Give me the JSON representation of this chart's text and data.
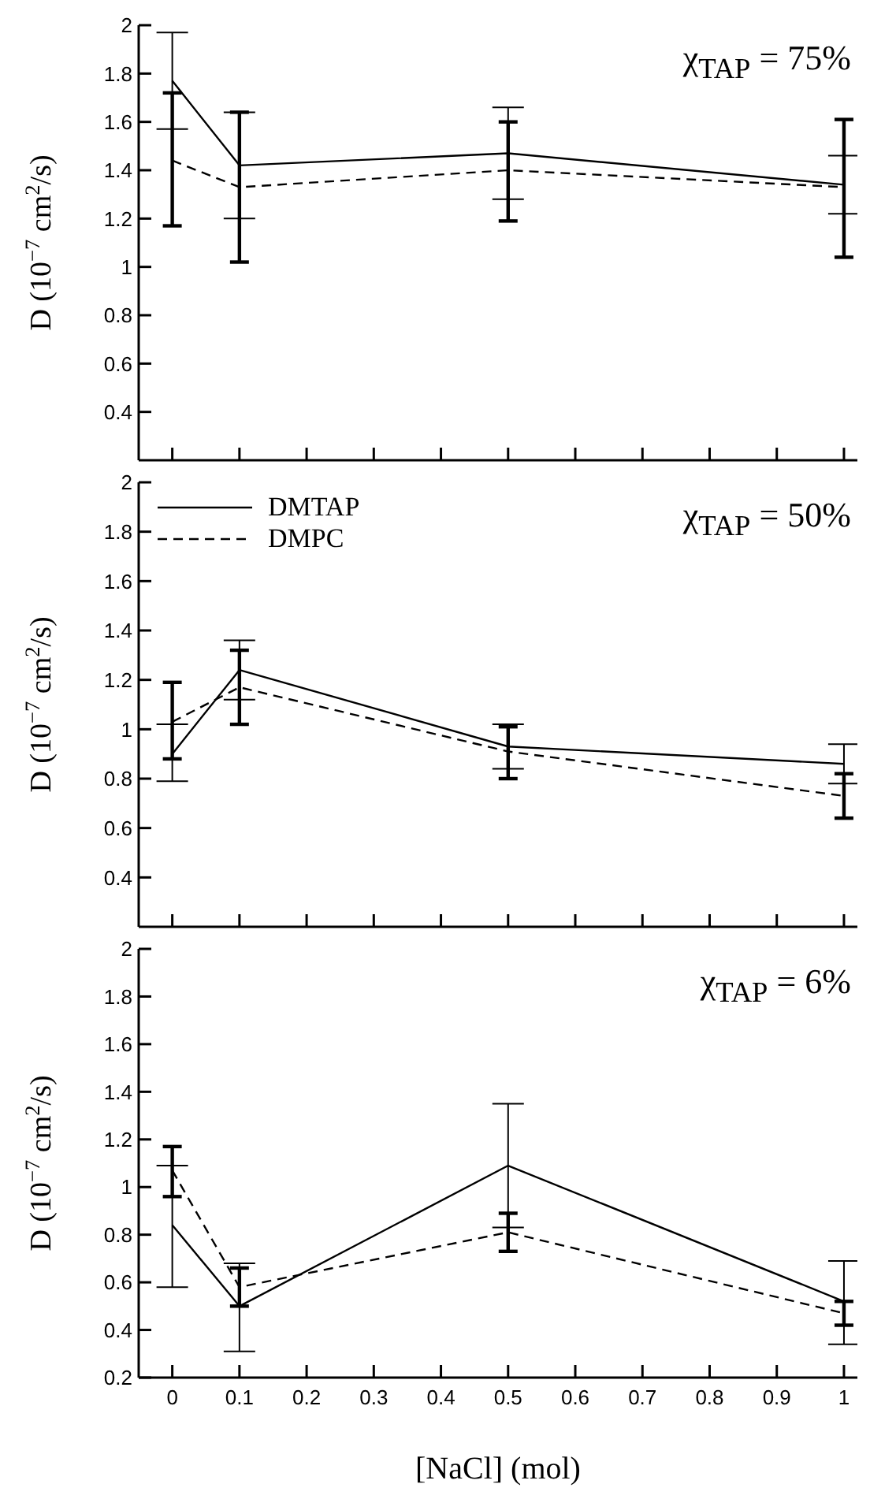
{
  "chart_data": [
    {
      "type": "line",
      "ylabel": "D (10$^{−7}$ cm$^{2}$/s)",
      "annotations": [
        "χ$_{TAP}$ = 75%"
      ],
      "x": [
        0,
        0.1,
        0.5,
        1
      ],
      "xlim": [
        -0.05,
        1.02
      ],
      "xticks": [
        0,
        0.1,
        0.2,
        0.3,
        0.4,
        0.5,
        0.6,
        0.7,
        0.8,
        0.9,
        1
      ],
      "ylim": [
        0.2,
        2
      ],
      "yticks": [
        0.4,
        0.6,
        0.8,
        1,
        1.2,
        1.4,
        1.6,
        1.8,
        2
      ],
      "tick_labels": "y",
      "legend": false,
      "marker": "none",
      "series": [
        {
          "color": "#000000",
          "line_style": "solid",
          "values": [
            1.77,
            1.42,
            1.47,
            1.34
          ],
          "errors": [
            [
              1.57,
              1.97
            ],
            [
              1.2,
              1.64
            ],
            [
              1.28,
              1.66
            ],
            [
              1.22,
              1.46
            ]
          ]
        },
        {
          "color": "#000000",
          "line_style": "dashed",
          "values": [
            1.44,
            1.33,
            1.4,
            1.33
          ],
          "errors": [
            [
              1.17,
              1.72
            ],
            [
              1.02,
              1.64
            ],
            [
              1.19,
              1.6
            ],
            [
              1.04,
              1.61
            ]
          ]
        }
      ]
    },
    {
      "type": "line",
      "ylabel": "D (10$^{−7}$ cm$^{2}$/s)",
      "annotations": [
        "χ$_{TAP}$ = 50%"
      ],
      "x": [
        0,
        0.1,
        0.5,
        1
      ],
      "xlim": [
        -0.05,
        1.02
      ],
      "xticks": [
        0,
        0.1,
        0.2,
        0.3,
        0.4,
        0.5,
        0.6,
        0.7,
        0.8,
        0.9,
        1
      ],
      "ylim": [
        0.2,
        2
      ],
      "yticks": [
        0.4,
        0.6,
        0.8,
        1,
        1.2,
        1.4,
        1.6,
        1.8,
        2
      ],
      "tick_labels": "y",
      "legend": "top left",
      "marker": "none",
      "series": [
        {
          "name": "DMTAP",
          "color": "#000000",
          "line_style": "solid",
          "values": [
            0.9,
            1.24,
            0.93,
            0.86
          ],
          "errors": [
            [
              0.79,
              1.02
            ],
            [
              1.12,
              1.36
            ],
            [
              0.84,
              1.02
            ],
            [
              0.78,
              0.94
            ]
          ]
        },
        {
          "name": "DMPC",
          "color": "#000000",
          "line_style": "dashed",
          "values": [
            1.03,
            1.17,
            0.91,
            0.73
          ],
          "errors": [
            [
              0.88,
              1.19
            ],
            [
              1.02,
              1.32
            ],
            [
              0.8,
              1.01
            ],
            [
              0.64,
              0.82
            ]
          ]
        }
      ]
    },
    {
      "type": "line",
      "ylabel": "D (10$^{−7}$ cm$^{2}$/s)",
      "xlabel": "[NaCl] (mol)",
      "annotations": [
        "χ$_{TAP}$ = 6%"
      ],
      "x": [
        0,
        0.1,
        0.5,
        1
      ],
      "xlim": [
        -0.05,
        1.02
      ],
      "xticks": [
        0,
        0.1,
        0.2,
        0.3,
        0.4,
        0.5,
        0.6,
        0.7,
        0.8,
        0.9,
        1
      ],
      "ylim": [
        0.2,
        2
      ],
      "yticks": [
        0.2,
        0.4,
        0.6,
        0.8,
        1,
        1.2,
        1.4,
        1.6,
        1.8,
        2
      ],
      "legend": false,
      "marker": "none",
      "series": [
        {
          "color": "#000000",
          "line_style": "solid",
          "values": [
            0.84,
            0.5,
            1.09,
            0.52
          ],
          "errors": [
            [
              0.58,
              1.09
            ],
            [
              0.31,
              0.68
            ],
            [
              0.83,
              1.35
            ],
            [
              0.34,
              0.69
            ]
          ]
        },
        {
          "color": "#000000",
          "line_style": "dashed",
          "values": [
            1.07,
            0.58,
            0.81,
            0.47
          ],
          "errors": [
            [
              0.96,
              1.17
            ],
            [
              0.5,
              0.66
            ],
            [
              0.73,
              0.89
            ],
            [
              0.42,
              0.52
            ]
          ]
        }
      ]
    }
  ]
}
